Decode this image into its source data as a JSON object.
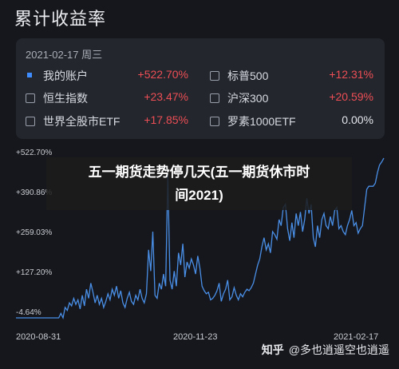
{
  "title": "累计收益率",
  "panel": {
    "date": "2021-02-17 周三",
    "items": [
      {
        "label": "我的账户",
        "value": "+522.70%",
        "status": "up",
        "checked": true
      },
      {
        "label": "标普500",
        "value": "+12.31%",
        "status": "up",
        "checked": false
      },
      {
        "label": "恒生指数",
        "value": "+23.47%",
        "status": "up",
        "checked": false
      },
      {
        "label": "沪深300",
        "value": "+20.59%",
        "status": "up",
        "checked": false
      },
      {
        "label": "世界全股市ETF",
        "value": "+17.85%",
        "status": "up",
        "checked": false
      },
      {
        "label": "罗素1000ETF",
        "value": "0.00%",
        "status": "flat",
        "checked": false
      }
    ]
  },
  "overlay": {
    "line1": "五一期货走势停几天(五一期货休市时",
    "line2": "间2021)"
  },
  "watermark": {
    "brand": "知乎",
    "author": "@多也逍遥空也逍遥"
  },
  "colors": {
    "line": "#4a8fe7",
    "up": "#ee4e55",
    "accent": "#3f8cff"
  },
  "chart_data": {
    "type": "line",
    "title": "",
    "xlabel": "",
    "ylabel": "",
    "x_ticks": [
      "2020-08-31",
      "2020-11-23",
      "2021-02-17"
    ],
    "y_ticks": [
      "+522.70%",
      "+390.86%",
      "+259.03%",
      "+127.20%",
      "-4.64%"
    ],
    "ylim": [
      -4.64,
      522.7
    ],
    "grid": false,
    "series": [
      {
        "name": "我的账户",
        "values": [
          -4.6,
          -4.6,
          -4.6,
          -4.6,
          -4.6,
          -4.6,
          -4.6,
          -4.6,
          -4.6,
          -4.6,
          -4.6,
          -4.6,
          -4.6,
          -4.6,
          -4.6,
          -4.6,
          -4.6,
          -4.6,
          -4.6,
          -4.6,
          -4.6,
          10,
          -4.6,
          30,
          20,
          45,
          35,
          60,
          40,
          55,
          25,
          70,
          35,
          90,
          60,
          110,
          80,
          45,
          70,
          40,
          60,
          30,
          50,
          75,
          55,
          90,
          70,
          100,
          60,
          85,
          45,
          30,
          60,
          80,
          50,
          40,
          70,
          55,
          90,
          60,
          45,
          75,
          220,
          150,
          280,
          70,
          60,
          110,
          90,
          140,
          100,
          470,
          120,
          90,
          150,
          100,
          210,
          170,
          240,
          130,
          180,
          160,
          190,
          170,
          140,
          200,
          160,
          100,
          85,
          75,
          80,
          55,
          60,
          70,
          85,
          110,
          50,
          75,
          90,
          120,
          55,
          65,
          95,
          70,
          55,
          75,
          65,
          80,
          90,
          85,
          95,
          110,
          140,
          170,
          190,
          230,
          260,
          220,
          240,
          210,
          280,
          270,
          255,
          320,
          300,
          360,
          370,
          290,
          250,
          310,
          260,
          340,
          300,
          345,
          280,
          320,
          390,
          340,
          370,
          260,
          230,
          300,
          260,
          320,
          340,
          300,
          290,
          330,
          300,
          350,
          360,
          290,
          300,
          280,
          270,
          300,
          320,
          350,
          300,
          310,
          275,
          290,
          300,
          360,
          420,
          430,
          430,
          430,
          440,
          475,
          500,
          510,
          522.7
        ]
      }
    ]
  }
}
